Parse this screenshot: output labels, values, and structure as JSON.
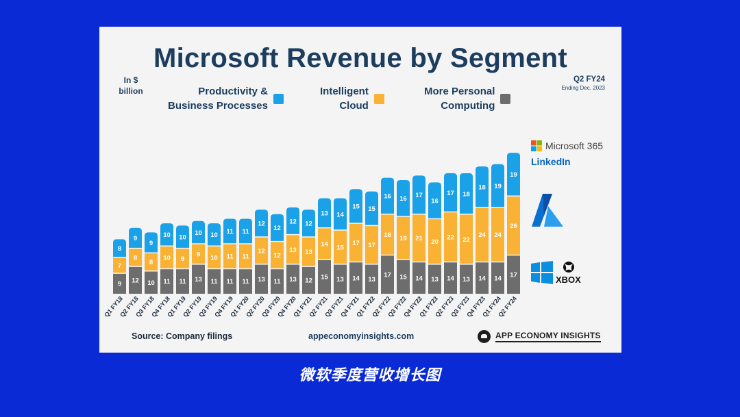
{
  "caption": "微软季度营收增长图",
  "unit_label": "In $\nbillion",
  "quarter_tag": {
    "title": "Q2 FY24",
    "subtitle": "Ending Dec. 2023"
  },
  "legend": [
    {
      "label": "Productivity &\nBusiness Processes",
      "color": "#1ba1e8"
    },
    {
      "label": "Intelligent\nCloud",
      "color": "#f9b233"
    },
    {
      "label": "More Personal\nComputing",
      "color": "#6d6d6d"
    }
  ],
  "footer": {
    "source": "Source: Company filings",
    "website": "appeconomyinsights.com",
    "brand": "APP ECONOMY INSIGHTS"
  },
  "segment_logos": {
    "m365": "Microsoft 365",
    "linkedin": "LinkedIn",
    "xbox": "XBOX"
  },
  "chart_data": {
    "type": "bar",
    "stacked": true,
    "title": "Microsoft Revenue by Segment",
    "ylabel": "In $ billion",
    "categories": [
      "Q1 FY18",
      "Q2 FY18",
      "Q3 FY18",
      "Q4 FY18",
      "Q1 FY19",
      "Q2 FY19",
      "Q3 FY19",
      "Q4 FY19",
      "Q1 FY20",
      "Q2 FY20",
      "Q3 FY20",
      "Q4 FY20",
      "Q1 FY21",
      "Q2 FY21",
      "Q3 FY21",
      "Q4 FY21",
      "Q1 FY22",
      "Q2 FY22",
      "Q3 FY22",
      "Q4 FY22",
      "Q1 FY23",
      "Q2 FY23",
      "Q3 FY23",
      "Q4 FY23",
      "Q1 FY24",
      "Q2 FY24"
    ],
    "series": [
      {
        "name": "More Personal Computing",
        "color": "#6d6d6d",
        "values": [
          9,
          12,
          10,
          11,
          11,
          13,
          11,
          11,
          11,
          13,
          11,
          13,
          12,
          15,
          13,
          14,
          13,
          17,
          15,
          14,
          13,
          14,
          13,
          14,
          14,
          17
        ]
      },
      {
        "name": "Intelligent Cloud",
        "color": "#f9b233",
        "values": [
          7,
          8,
          8,
          10,
          9,
          9,
          10,
          11,
          11,
          12,
          12,
          13,
          13,
          14,
          15,
          17,
          17,
          18,
          19,
          21,
          20,
          22,
          22,
          24,
          24,
          26
        ]
      },
      {
        "name": "Productivity & Business Processes",
        "color": "#1ba1e8",
        "values": [
          8,
          9,
          9,
          10,
          10,
          10,
          10,
          11,
          11,
          12,
          12,
          12,
          12,
          13,
          14,
          15,
          15,
          16,
          16,
          17,
          16,
          17,
          18,
          18,
          19,
          19
        ]
      }
    ],
    "legend_position": "top"
  }
}
